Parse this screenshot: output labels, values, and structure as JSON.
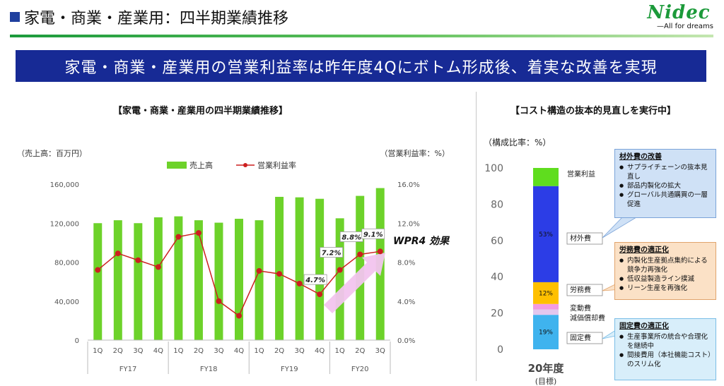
{
  "header": {
    "title": "家電・商業・産業用：四半期業績推移",
    "logo_text": "Nidec",
    "logo_tagline": "—All for dreams"
  },
  "banner": {
    "text": "家電・商業・産業用の営業利益率は昨年度4Qにボトム形成後、着実な改善を実現"
  },
  "left_panel": {
    "heading": "【家電・商業・産業用の四半期業績推移】"
  },
  "right_panel": {
    "heading": "【コスト構造の抜本的見直しを実行中】"
  },
  "colors": {
    "bar": "#6dd22a",
    "line": "#cc1f1f",
    "banner": "#172a95",
    "arrow": "#f2c4ee"
  },
  "chart_data": [
    {
      "type": "bar",
      "categories": [
        "1Q",
        "2Q",
        "3Q",
        "4Q",
        "1Q",
        "2Q",
        "3Q",
        "4Q",
        "1Q",
        "2Q",
        "3Q",
        "4Q",
        "1Q",
        "2Q",
        "3Q"
      ],
      "groups": [
        {
          "label": "FY17",
          "count": 4
        },
        {
          "label": "FY18",
          "count": 4
        },
        {
          "label": "FY19",
          "count": 4
        },
        {
          "label": "FY20",
          "count": 3
        }
      ],
      "series": [
        {
          "name": "売上高",
          "type": "bar",
          "axis": "left",
          "values": [
            120000,
            123000,
            120000,
            126000,
            127000,
            123000,
            120500,
            124500,
            123000,
            147000,
            146500,
            145000,
            125000,
            148000,
            156000
          ]
        },
        {
          "name": "営業利益率",
          "type": "line",
          "axis": "right",
          "values": [
            7.2,
            8.9,
            8.2,
            7.5,
            10.6,
            11.0,
            4.0,
            2.5,
            7.1,
            6.8,
            5.8,
            4.7,
            7.2,
            8.8,
            9.1
          ]
        }
      ],
      "y_left": {
        "unit_label": "（売上高：百万円）",
        "ylim": [
          0,
          160000
        ],
        "ticks": [
          "0",
          "40,000",
          "80,000",
          "120,000",
          "160,000"
        ]
      },
      "y_right": {
        "unit_label": "（営業利益率：%）",
        "ylim": [
          0,
          16
        ],
        "ticks": [
          "0.0%",
          "4.0%",
          "8.0%",
          "12.0%",
          "16.0%"
        ]
      },
      "data_labels": [
        "4.7%",
        "7.2%",
        "8.8%",
        "9.1%"
      ],
      "annotation": "WPR4 効果",
      "legend_position": "top"
    },
    {
      "type": "bar",
      "stacked": true,
      "unit_label": "（構成比率：%）",
      "ylim": [
        0,
        100
      ],
      "ticks": [
        "0",
        "20",
        "40",
        "60",
        "80",
        "100"
      ],
      "category": "20年度",
      "category_sub": "(目標)",
      "segments": [
        {
          "name": "固定費",
          "value": 19,
          "label": "19%",
          "color": "#3fb3ee"
        },
        {
          "name": "減価償却費",
          "value": 3,
          "label": "",
          "color": "#e3c7ee"
        },
        {
          "name": "変動費",
          "value": 3,
          "label": "",
          "color": "#f39be3"
        },
        {
          "name": "労務費",
          "value": 12,
          "label": "12%",
          "color": "#ffc000"
        },
        {
          "name": "材外費",
          "value": 53,
          "label": "53%",
          "color": "#2c3de6"
        },
        {
          "name": "営業利益",
          "value": 10,
          "label": "",
          "color": "#5fdd1e"
        }
      ]
    }
  ],
  "callouts": [
    {
      "title": "材外費の改善",
      "items": [
        "サプライチェーンの抜本見直し",
        "部品内製化の拡大",
        "グローバル共通購買の一層促進"
      ]
    },
    {
      "title": "労務費の適正化",
      "items": [
        "内製化生産拠点集約による競争力再強化",
        "低収益製造ライン撲滅",
        "リーン生産を再強化"
      ]
    },
    {
      "title": "固定費の適正化",
      "items": [
        "生産事業所の統合や合理化を継続中",
        "間接費用（本社機能コスト）のスリム化"
      ]
    }
  ]
}
